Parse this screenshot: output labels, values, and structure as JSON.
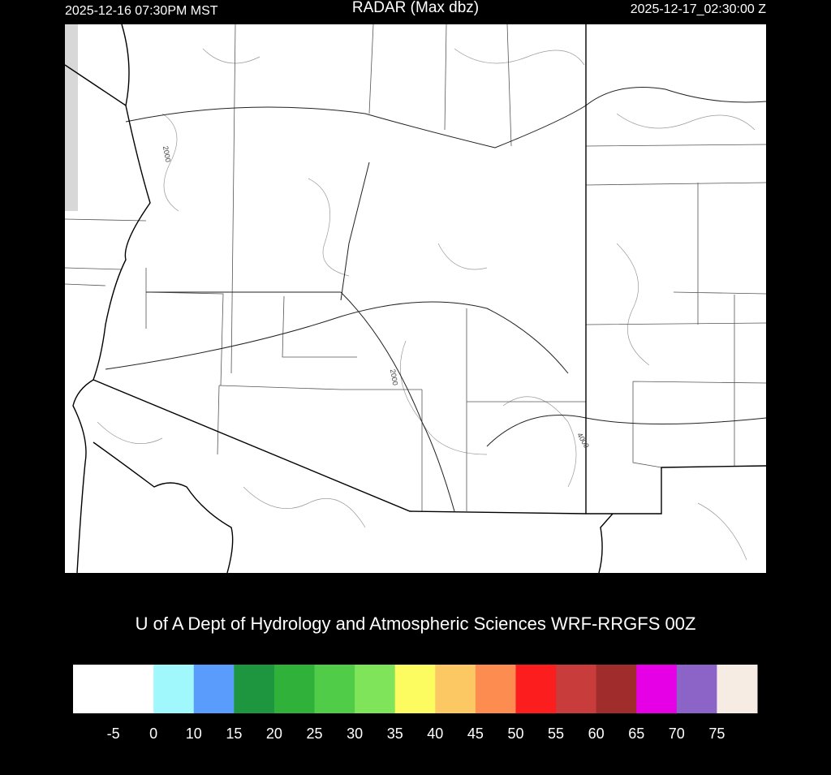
{
  "header": {
    "left": "2025-12-16 07:30PM MST",
    "center": "RADAR (Max dbz)",
    "right": "2025-12-17_02:30:00 Z"
  },
  "map": {
    "contour_labels": [
      "2000",
      "2000",
      "4000"
    ]
  },
  "credit": "U of A Dept of Hydrology and Atmospheric Sciences WRF-RRGFS 00Z",
  "colorbar": {
    "colors": [
      "#ffffff",
      "#a0f8fc",
      "#5a9cfc",
      "#1e9640",
      "#30b23a",
      "#50cc48",
      "#80e45a",
      "#fcfc60",
      "#fcc864",
      "#fc8c50",
      "#fc1e1e",
      "#c83c3c",
      "#a02c2c",
      "#e600e6",
      "#8c64c8",
      "#f6ece4"
    ],
    "ticks": [
      -5,
      0,
      10,
      15,
      20,
      25,
      30,
      35,
      40,
      45,
      50,
      55,
      60,
      65,
      70,
      75
    ]
  }
}
